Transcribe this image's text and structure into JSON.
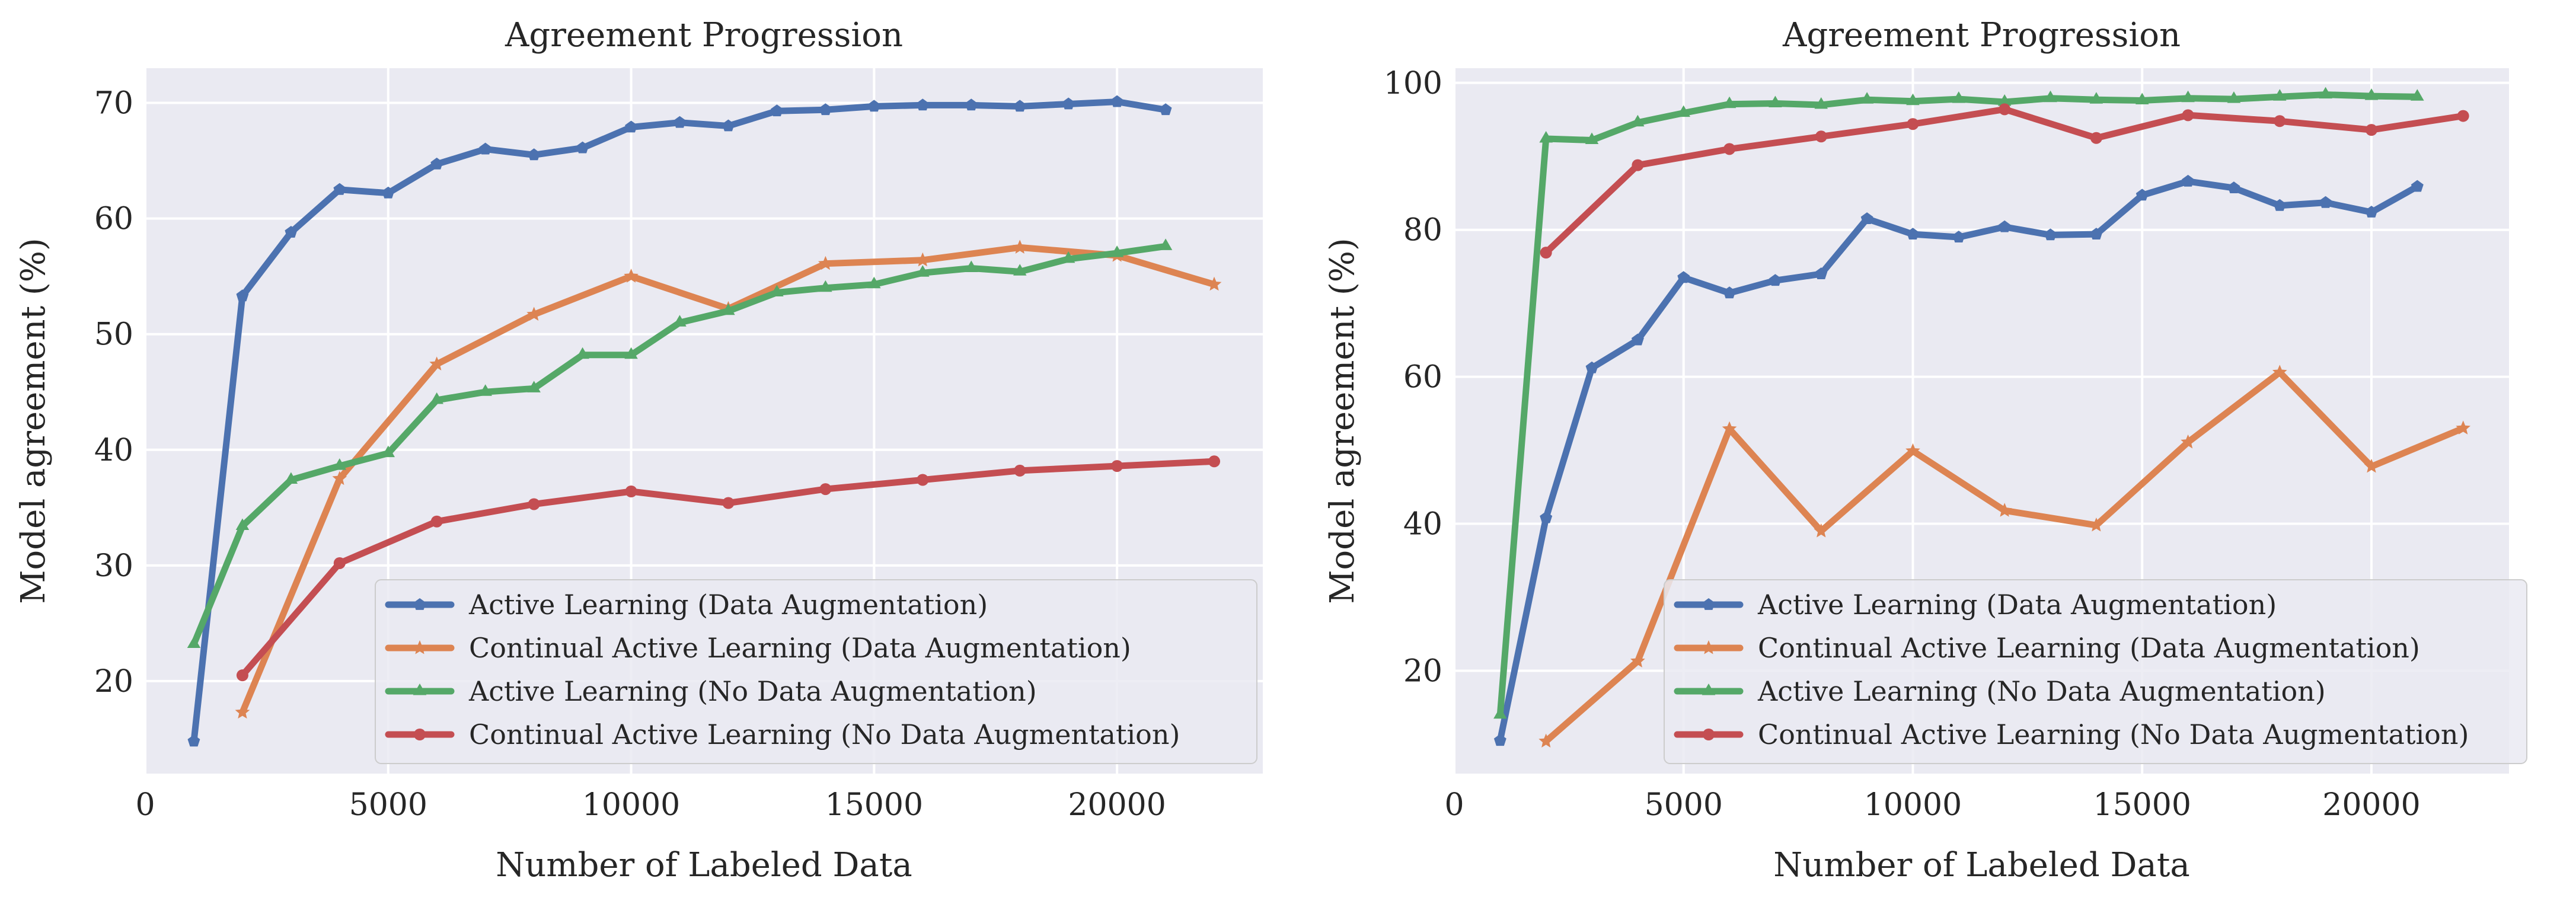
{
  "chart_data": [
    {
      "type": "line",
      "title": "Agreement Progression",
      "xlabel": "Number of Labeled Data",
      "ylabel": "Model agreement (%)",
      "xlim": [
        0,
        23000
      ],
      "ylim": [
        12,
        73
      ],
      "xticks": [
        0,
        5000,
        10000,
        15000,
        20000
      ],
      "yticks": [
        20,
        30,
        40,
        50,
        60,
        70
      ],
      "grid": true,
      "legend_position": "lower-right",
      "series": [
        {
          "name": "Active Learning (Data Augmentation)",
          "color": "#4c72b0",
          "marker": "pentagon",
          "x": [
            1000,
            2000,
            3000,
            4000,
            5000,
            6000,
            7000,
            8000,
            9000,
            10000,
            11000,
            12000,
            13000,
            14000,
            15000,
            16000,
            17000,
            18000,
            19000,
            20000,
            21000
          ],
          "y": [
            14.8,
            53.3,
            58.8,
            62.5,
            62.2,
            64.7,
            66.0,
            65.5,
            66.1,
            67.9,
            68.3,
            68.0,
            69.3,
            69.4,
            69.7,
            69.8,
            69.8,
            69.7,
            69.9,
            70.1,
            69.4
          ]
        },
        {
          "name": "Continual Active Learning (Data Augmentation)",
          "color": "#dd8452",
          "marker": "star",
          "x": [
            2000,
            4000,
            6000,
            8000,
            10000,
            12000,
            14000,
            16000,
            18000,
            20000,
            22000
          ],
          "y": [
            17.3,
            37.5,
            47.4,
            51.7,
            55.0,
            52.2,
            56.1,
            56.4,
            57.5,
            56.8,
            54.3
          ]
        },
        {
          "name": "Active Learning (No Data Augmentation)",
          "color": "#55a868",
          "marker": "triangle",
          "x": [
            1000,
            2000,
            3000,
            4000,
            5000,
            6000,
            7000,
            8000,
            9000,
            10000,
            11000,
            12000,
            13000,
            14000,
            15000,
            16000,
            17000,
            18000,
            19000,
            20000,
            21000
          ],
          "y": [
            23.2,
            33.4,
            37.4,
            38.6,
            39.7,
            44.3,
            45.0,
            45.3,
            48.2,
            48.2,
            51.0,
            52.0,
            53.6,
            54.0,
            54.3,
            55.3,
            55.7,
            55.4,
            56.5,
            57.0,
            57.6
          ]
        },
        {
          "name": "Continual Active Learning (No Data Augmentation)",
          "color": "#c44e52",
          "marker": "circle",
          "x": [
            2000,
            4000,
            6000,
            8000,
            10000,
            12000,
            14000,
            16000,
            18000,
            20000,
            22000
          ],
          "y": [
            20.5,
            30.2,
            33.8,
            35.3,
            36.4,
            35.4,
            36.6,
            37.4,
            38.2,
            38.6,
            39.0
          ]
        }
      ]
    },
    {
      "type": "line",
      "title": "Agreement Progression",
      "xlabel": "Number of Labeled Data",
      "ylabel": "Model agreement (%)",
      "xlim": [
        0,
        23000
      ],
      "ylim": [
        6,
        102
      ],
      "xticks": [
        0,
        5000,
        10000,
        15000,
        20000
      ],
      "yticks": [
        20,
        40,
        60,
        80,
        100
      ],
      "grid": true,
      "legend_position": "lower-right",
      "series": [
        {
          "name": "Active Learning (Data Augmentation)",
          "color": "#4c72b0",
          "marker": "pentagon",
          "x": [
            1000,
            2000,
            3000,
            4000,
            5000,
            6000,
            7000,
            8000,
            9000,
            10000,
            11000,
            12000,
            13000,
            14000,
            15000,
            16000,
            17000,
            18000,
            19000,
            20000,
            21000
          ],
          "y": [
            10.5,
            40.8,
            61.2,
            65.0,
            73.5,
            71.4,
            73.1,
            74.0,
            81.5,
            79.4,
            79.0,
            80.4,
            79.3,
            79.4,
            84.7,
            86.6,
            85.7,
            83.3,
            83.7,
            82.4,
            85.9
          ]
        },
        {
          "name": "Continual Active Learning (Data Augmentation)",
          "color": "#dd8452",
          "marker": "star",
          "x": [
            2000,
            4000,
            6000,
            8000,
            10000,
            12000,
            14000,
            16000,
            18000,
            20000,
            22000
          ],
          "y": [
            10.4,
            21.3,
            52.9,
            39.0,
            49.9,
            41.8,
            39.8,
            51.1,
            60.6,
            47.8,
            53.0
          ]
        },
        {
          "name": "Active Learning (No Data Augmentation)",
          "color": "#55a868",
          "marker": "triangle",
          "x": [
            1000,
            2000,
            3000,
            4000,
            5000,
            6000,
            7000,
            8000,
            9000,
            10000,
            11000,
            12000,
            13000,
            14000,
            15000,
            16000,
            17000,
            18000,
            19000,
            20000,
            21000
          ],
          "y": [
            14.0,
            92.4,
            92.2,
            94.6,
            95.9,
            97.1,
            97.2,
            97.0,
            97.7,
            97.5,
            97.8,
            97.4,
            97.9,
            97.7,
            97.6,
            97.9,
            97.8,
            98.1,
            98.4,
            98.2,
            98.1
          ]
        },
        {
          "name": "Continual Active Learning (No Data Augmentation)",
          "color": "#c44e52",
          "marker": "circle",
          "x": [
            2000,
            4000,
            6000,
            8000,
            10000,
            12000,
            14000,
            16000,
            18000,
            20000,
            22000
          ],
          "y": [
            76.9,
            88.8,
            91.0,
            92.7,
            94.4,
            96.4,
            92.5,
            95.6,
            94.8,
            93.6,
            95.5
          ]
        }
      ]
    }
  ]
}
